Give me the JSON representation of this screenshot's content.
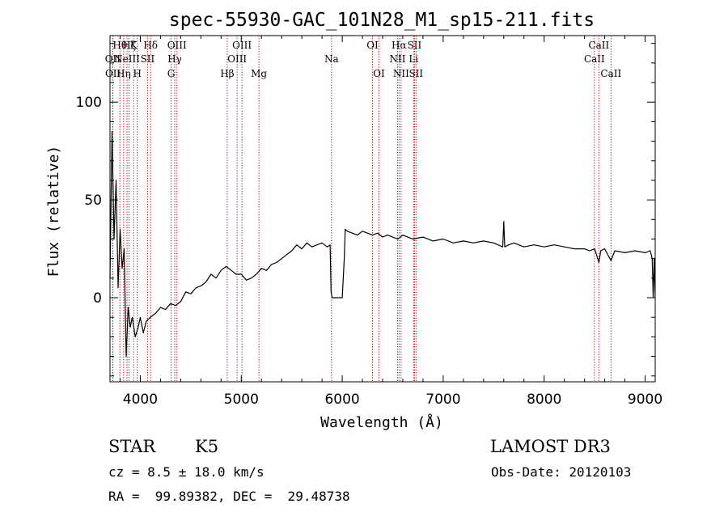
{
  "chart_data": {
    "type": "line",
    "title": "spec-55930-GAC_101N28_M1_sp15-211.fits",
    "xlabel": "Wavelength (Å)",
    "ylabel": "Flux (relative)",
    "xlim": [
      3700,
      9100
    ],
    "ylim": [
      -43,
      134
    ],
    "xticks": [
      4000,
      5000,
      6000,
      7000,
      8000,
      9000
    ],
    "yticks": [
      0,
      50,
      100
    ],
    "grid": false,
    "legend": "none",
    "series": [
      {
        "x": [
          3700,
          3720,
          3740,
          3760,
          3780,
          3800,
          3820,
          3840,
          3860,
          3880,
          3900,
          3920,
          3950,
          3980,
          4000,
          4030,
          4060,
          4100,
          4150,
          4200,
          4250,
          4300,
          4350,
          4400,
          4450,
          4500,
          4550,
          4600,
          4650,
          4700,
          4750,
          4800,
          4850,
          4900,
          4950,
          5000,
          5050,
          5100,
          5150,
          5200,
          5250,
          5300,
          5350,
          5400,
          5450,
          5500,
          5550,
          5600,
          5650,
          5700,
          5750,
          5800,
          5850,
          5880,
          5890,
          5900,
          6000,
          6020,
          6030,
          6050,
          6100,
          6150,
          6200,
          6250,
          6300,
          6350,
          6400,
          6450,
          6500,
          6550,
          6600,
          6650,
          6700,
          6800,
          6900,
          7000,
          7100,
          7200,
          7300,
          7400,
          7500,
          7590,
          7600,
          7610,
          7650,
          7700,
          7800,
          7900,
          8000,
          8100,
          8200,
          8300,
          8400,
          8450,
          8500,
          8542,
          8560,
          8600,
          8662,
          8700,
          8800,
          8900,
          9000,
          9050,
          9070,
          9080,
          9090,
          9100
        ],
        "values": [
          10,
          85,
          30,
          60,
          5,
          35,
          15,
          25,
          -30,
          -5,
          -15,
          -10,
          -20,
          -15,
          -10,
          -18,
          -12,
          -10,
          -8,
          -5,
          -6,
          -3,
          -4,
          -2,
          3,
          2,
          5,
          6,
          8,
          12,
          10,
          14,
          16,
          14,
          12,
          12,
          9,
          10,
          12,
          15,
          14,
          17,
          18,
          20,
          22,
          24,
          27,
          25,
          28,
          26,
          27,
          28,
          26,
          27,
          3,
          0,
          0,
          20,
          35,
          34,
          33,
          32,
          34,
          33,
          32,
          33,
          31,
          32,
          31,
          30,
          32,
          31,
          30,
          31,
          29,
          30,
          28,
          29,
          28,
          29,
          28,
          26,
          39,
          26,
          27,
          28,
          26,
          27,
          26,
          27,
          26,
          25,
          25,
          24,
          25,
          18,
          24,
          25,
          19,
          24,
          23,
          24,
          23,
          24,
          20,
          0,
          20,
          0
        ]
      }
    ],
    "lines": [
      {
        "x": 3727,
        "label": "OII",
        "row": 1
      },
      {
        "x": 3729,
        "label": "OII",
        "row": 2
      },
      {
        "x": 3798,
        "label": "Hθ",
        "row": 0
      },
      {
        "x": 3835,
        "label": "Hη",
        "row": 2
      },
      {
        "x": 3869,
        "label": "NeIII",
        "row": 1
      },
      {
        "x": 3889,
        "label": "Hζ",
        "row": 0
      },
      {
        "x": 3934,
        "label": "K",
        "row": 0
      },
      {
        "x": 3970,
        "label": "H",
        "row": 2
      },
      {
        "x": 4072,
        "label": "SII",
        "row": 1
      },
      {
        "x": 4102,
        "label": "Hδ",
        "row": 0
      },
      {
        "x": 4305,
        "label": "G",
        "row": 2
      },
      {
        "x": 4341,
        "label": "Hγ",
        "row": 1
      },
      {
        "x": 4363,
        "label": "OIII",
        "row": 0
      },
      {
        "x": 4861,
        "label": "Hβ",
        "row": 2
      },
      {
        "x": 4959,
        "label": "OIII",
        "row": 1
      },
      {
        "x": 5007,
        "label": "OIII",
        "row": 0
      },
      {
        "x": 5175,
        "label": "Mg",
        "row": 2
      },
      {
        "x": 5894,
        "label": "Na",
        "row": 1
      },
      {
        "x": 6300,
        "label": "OI",
        "row": 0
      },
      {
        "x": 6364,
        "label": "OI",
        "row": 2
      },
      {
        "x": 6548,
        "label": "NII",
        "row": 1
      },
      {
        "x": 6563,
        "label": "Hα",
        "row": 0
      },
      {
        "x": 6583,
        "label": "NII",
        "row": 2
      },
      {
        "x": 6707,
        "label": "Li",
        "row": 1
      },
      {
        "x": 6716,
        "label": "SII",
        "row": 0
      },
      {
        "x": 6731,
        "label": "SII",
        "row": 2
      },
      {
        "x": 8498,
        "label": "CaII",
        "row": 1
      },
      {
        "x": 8542,
        "label": "CaII",
        "row": 0
      },
      {
        "x": 8662,
        "label": "CaII",
        "row": 2
      }
    ]
  },
  "info": {
    "class": "STAR",
    "subclass": "K5",
    "survey": "LAMOST DR3",
    "cz": "cz = 8.5 ± 18.0 km/s",
    "obs_date": "Obs-Date: 20120103",
    "coords": "RA =  99.89382, DEC =  29.48738"
  },
  "colors": {
    "spectrum": "#000000",
    "line_markers": "#b00000"
  }
}
